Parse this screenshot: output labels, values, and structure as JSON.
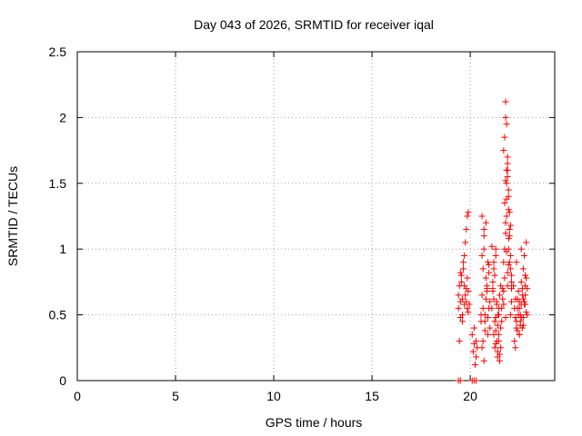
{
  "chart_data": {
    "type": "scatter",
    "title": "Day 043 of 2026, SRMTID for receiver iqal",
    "xlabel": "GPS time / hours",
    "ylabel": "SRMTID / TECUs",
    "xlim": [
      0,
      24.3
    ],
    "ylim": [
      0,
      2.5
    ],
    "xticks": [
      0,
      5,
      10,
      15,
      20
    ],
    "xtick_labels": [
      "0",
      "5",
      "10",
      "15",
      "20"
    ],
    "yticks": [
      0,
      0.5,
      1,
      1.5,
      2,
      2.5
    ],
    "ytick_labels": [
      "0",
      "0.5",
      "1",
      "1.5",
      "2",
      "2.5"
    ],
    "grid": true,
    "marker": "+",
    "color": "#ff0000",
    "series": [
      {
        "name": "SRMTID",
        "x": [
          19.4,
          19.45,
          19.5,
          19.55,
          19.6,
          19.65,
          19.7,
          19.75,
          19.8,
          19.85,
          19.9,
          19.45,
          19.55,
          19.65,
          19.75,
          19.85,
          19.5,
          19.6,
          19.7,
          19.8,
          19.9,
          19.85,
          19.9,
          19.95,
          19.4,
          19.5,
          19.6,
          19.7,
          19.8,
          20.1,
          20.15,
          20.2,
          20.25,
          20.3,
          20.35,
          20.2,
          20.3,
          20.55,
          20.6,
          20.65,
          20.7,
          20.75,
          20.8,
          20.85,
          20.9,
          20.95,
          21.0,
          20.6,
          20.7,
          20.8,
          20.9,
          21.0,
          20.65,
          20.75,
          20.85,
          20.95,
          20.6,
          20.7,
          20.8,
          20.55,
          20.65,
          20.75,
          20.85,
          20.95,
          20.6,
          20.7,
          20.9,
          21.1,
          21.15,
          21.2,
          21.25,
          21.3,
          21.35,
          21.4,
          21.45,
          21.5,
          21.55,
          21.2,
          21.3,
          21.4,
          21.5,
          21.15,
          21.25,
          21.35,
          21.45,
          21.55,
          21.2,
          21.3,
          21.4,
          21.1,
          21.2,
          21.3,
          21.4,
          21.5,
          21.25,
          21.35,
          21.45,
          21.15,
          21.3,
          21.45,
          21.55,
          21.6,
          21.65,
          21.7,
          21.75,
          21.8,
          21.85,
          21.9,
          21.95,
          22.0,
          22.05,
          22.1,
          21.7,
          21.75,
          21.8,
          21.85,
          21.9,
          21.95,
          22.0,
          21.8,
          21.85,
          21.9,
          21.95,
          21.75,
          21.85,
          21.95,
          22.05,
          21.65,
          21.75,
          21.85,
          21.95,
          22.05,
          22.1,
          21.7,
          21.8,
          21.9,
          22.0,
          21.6,
          21.7,
          21.8,
          21.9,
          22.0,
          22.1,
          21.85,
          21.95,
          22.05,
          22.1,
          21.8,
          21.9,
          22.2,
          22.25,
          22.3,
          22.35,
          22.4,
          22.45,
          22.5,
          22.55,
          22.6,
          22.65,
          22.7,
          22.75,
          22.8,
          22.85,
          22.9,
          22.3,
          22.4,
          22.5,
          22.6,
          22.7,
          22.8,
          22.35,
          22.45,
          22.55,
          22.65,
          22.75,
          22.85,
          22.25,
          22.35,
          22.5,
          22.6,
          22.7,
          22.8,
          22.9,
          22.4,
          22.55,
          22.65,
          22.75,
          22.3,
          22.5,
          22.7,
          22.85,
          22.6,
          22.8,
          19.4,
          19.5,
          20.1,
          20.2,
          20.3
        ],
        "y": [
          0.55,
          0.72,
          0.48,
          0.8,
          0.62,
          0.9,
          0.58,
          1.05,
          0.7,
          0.55,
          0.52,
          0.3,
          0.75,
          0.85,
          0.65,
          1.25,
          0.6,
          0.5,
          0.95,
          1.15,
          0.68,
          0.78,
          1.28,
          0.58,
          0.65,
          0.82,
          0.45,
          0.72,
          0.6,
          0.35,
          0.22,
          0.28,
          0.12,
          0.18,
          0.25,
          0.4,
          0.3,
          0.5,
          0.65,
          0.85,
          1.1,
          0.45,
          0.62,
          0.72,
          0.9,
          0.55,
          0.4,
          1.25,
          1.0,
          0.78,
          0.35,
          0.6,
          0.3,
          0.5,
          0.68,
          0.82,
          0.95,
          1.15,
          1.2,
          0.45,
          0.55,
          0.38,
          0.7,
          0.88,
          0.25,
          0.15,
          0.48,
          0.55,
          0.7,
          0.35,
          0.25,
          0.48,
          0.6,
          0.18,
          0.3,
          0.65,
          0.4,
          0.85,
          1.0,
          0.5,
          0.2,
          0.75,
          0.45,
          0.3,
          0.55,
          0.72,
          0.9,
          0.38,
          0.22,
          1.02,
          0.62,
          0.28,
          0.42,
          0.15,
          0.8,
          0.58,
          0.35,
          0.68,
          0.95,
          0.5,
          0.25,
          0.55,
          0.7,
          0.9,
          1.0,
          1.2,
          1.5,
          1.65,
          1.4,
          1.1,
          0.95,
          0.75,
          1.75,
          1.85,
          2.0,
          1.6,
          1.55,
          1.3,
          1.15,
          2.12,
          1.95,
          1.7,
          1.45,
          1.35,
          1.25,
          1.0,
          0.85,
          0.62,
          0.78,
          0.98,
          1.08,
          1.18,
          0.7,
          0.58,
          0.48,
          0.82,
          1.28,
          0.45,
          0.68,
          1.52,
          1.6,
          0.9,
          0.6,
          1.38,
          0.88,
          0.5,
          0.8,
          1.12,
          0.72,
          0.72,
          0.55,
          0.48,
          0.4,
          0.62,
          0.5,
          0.35,
          0.45,
          0.58,
          0.65,
          0.42,
          0.6,
          0.8,
          0.52,
          0.7,
          0.25,
          0.38,
          0.55,
          0.48,
          0.62,
          0.72,
          0.9,
          0.68,
          0.5,
          0.4,
          0.58,
          1.05,
          0.3,
          0.45,
          0.6,
          0.75,
          0.85,
          0.65,
          0.5,
          0.55,
          0.42,
          0.7,
          0.95,
          0.62,
          0.35,
          0.48,
          0.78,
          1.0,
          0.58,
          0.0,
          0.0,
          0.0,
          0.0,
          0.0
        ]
      }
    ]
  }
}
